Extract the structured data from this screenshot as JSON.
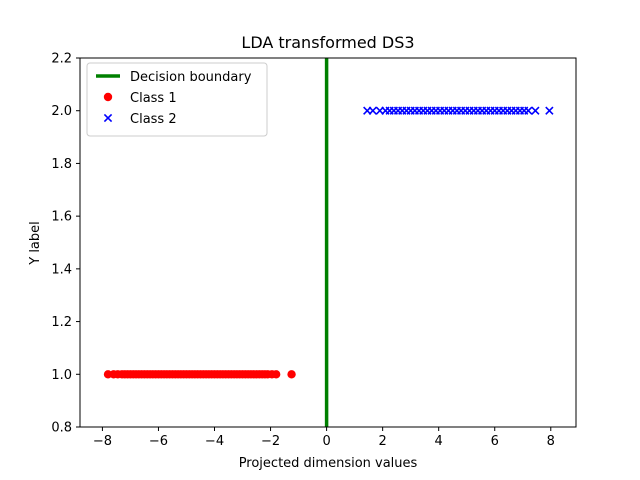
{
  "chart_data": {
    "type": "scatter",
    "title": "LDA transformed DS3",
    "xlabel": "Projected dimension values",
    "ylabel": "Y label",
    "xlim": [
      -8.8,
      8.9
    ],
    "ylim": [
      0.8,
      2.2
    ],
    "xticks": [
      -8,
      -6,
      -4,
      -2,
      0,
      2,
      4,
      6,
      8
    ],
    "xtick_labels": [
      "−8",
      "−6",
      "−4",
      "−2",
      "0",
      "2",
      "4",
      "6",
      "8"
    ],
    "yticks": [
      0.8,
      1.0,
      1.2,
      1.4,
      1.6,
      1.8,
      2.0,
      2.2
    ],
    "ytick_labels": [
      "0.8",
      "1.0",
      "1.2",
      "1.4",
      "1.6",
      "1.8",
      "2.0",
      "2.2"
    ],
    "grid": false,
    "legend_position": "top-left",
    "decision_boundary": {
      "name": "Decision boundary",
      "x": 0,
      "color": "#008000"
    },
    "series": [
      {
        "name": "Class 1",
        "marker": "circle",
        "color": "#ff0000",
        "y": 1.0,
        "x": [
          -7.8,
          -7.6,
          -7.45,
          -7.3,
          -7.2,
          -7.1,
          -7.0,
          -6.9,
          -6.8,
          -6.7,
          -6.6,
          -6.5,
          -6.4,
          -6.3,
          -6.2,
          -6.1,
          -6.0,
          -5.9,
          -5.8,
          -5.7,
          -5.6,
          -5.5,
          -5.4,
          -5.3,
          -5.2,
          -5.1,
          -5.0,
          -4.9,
          -4.8,
          -4.7,
          -4.6,
          -4.5,
          -4.4,
          -4.3,
          -4.2,
          -4.1,
          -4.0,
          -3.9,
          -3.8,
          -3.7,
          -3.6,
          -3.5,
          -3.4,
          -3.3,
          -3.2,
          -3.1,
          -3.0,
          -2.9,
          -2.8,
          -2.7,
          -2.6,
          -2.5,
          -2.4,
          -2.3,
          -2.2,
          -2.1,
          -1.95,
          -1.8,
          -1.25
        ]
      },
      {
        "name": "Class 2",
        "marker": "x",
        "color": "#0000ff",
        "y": 2.0,
        "x": [
          1.45,
          1.65,
          1.9,
          2.1,
          2.25,
          2.4,
          2.55,
          2.7,
          2.85,
          3.0,
          3.15,
          3.3,
          3.45,
          3.6,
          3.75,
          3.9,
          4.05,
          4.2,
          4.35,
          4.5,
          4.65,
          4.8,
          4.95,
          5.1,
          5.25,
          5.4,
          5.55,
          5.7,
          5.85,
          6.0,
          6.15,
          6.3,
          6.45,
          6.6,
          6.75,
          6.9,
          7.05,
          7.2,
          7.45,
          7.95
        ]
      }
    ]
  }
}
